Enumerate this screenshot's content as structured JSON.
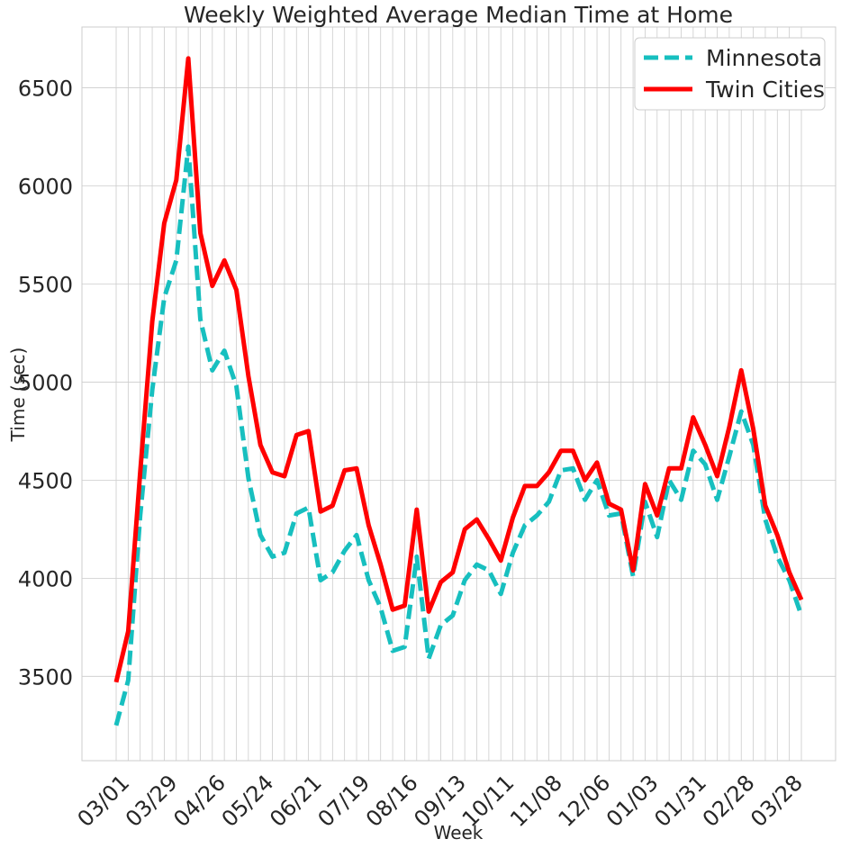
{
  "chart_data": {
    "type": "line",
    "title": "Weekly Weighted Average Median Time at Home",
    "xlabel": "Week",
    "ylabel": "Time (sec)",
    "x_tick_labels": [
      "03/01",
      "03/29",
      "04/26",
      "05/24",
      "06/21",
      "07/19",
      "08/16",
      "09/13",
      "10/11",
      "11/08",
      "12/06",
      "01/03",
      "01/31",
      "02/28",
      "03/28"
    ],
    "x_tick_every": 4,
    "y_ticks": [
      3500,
      4000,
      4500,
      5000,
      5500,
      6000,
      6500
    ],
    "ylim": [
      3070,
      6810
    ],
    "grid": true,
    "legend_position": "top-right",
    "series": [
      {
        "name": "Minnesota",
        "style": "dashed",
        "color": "#17bfbf",
        "values": [
          3250,
          3480,
          4320,
          4960,
          5430,
          5620,
          6200,
          5320,
          5060,
          5160,
          4980,
          4510,
          4220,
          4110,
          4130,
          4330,
          4360,
          3990,
          4030,
          4140,
          4220,
          3990,
          3850,
          3630,
          3650,
          4110,
          3590,
          3760,
          3810,
          3990,
          4070,
          4040,
          3920,
          4130,
          4270,
          4320,
          4390,
          4550,
          4560,
          4400,
          4500,
          4320,
          4330,
          4010,
          4390,
          4210,
          4500,
          4400,
          4650,
          4580,
          4400,
          4620,
          4850,
          4680,
          4300,
          4110,
          3990,
          3810
        ]
      },
      {
        "name": "Twin Cities",
        "style": "solid",
        "color": "#ff0000",
        "values": [
          3470,
          3730,
          4540,
          5310,
          5810,
          6030,
          6650,
          5760,
          5490,
          5620,
          5470,
          5030,
          4680,
          4540,
          4520,
          4730,
          4750,
          4340,
          4370,
          4550,
          4560,
          4270,
          4070,
          3840,
          3860,
          4350,
          3830,
          3980,
          4030,
          4250,
          4300,
          4200,
          4090,
          4310,
          4470,
          4470,
          4540,
          4650,
          4650,
          4500,
          4590,
          4380,
          4350,
          4040,
          4480,
          4320,
          4560,
          4560,
          4820,
          4680,
          4520,
          4770,
          5060,
          4760,
          4370,
          4220,
          4030,
          3890
        ]
      }
    ]
  }
}
